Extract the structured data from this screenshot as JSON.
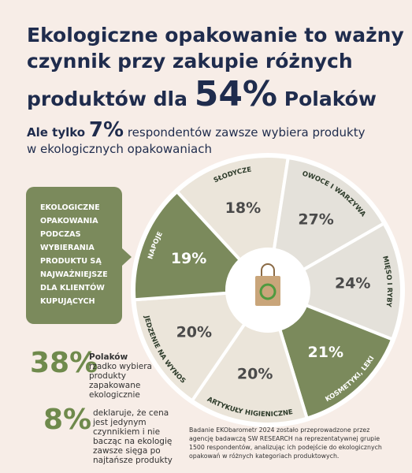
{
  "title": {
    "line1": "Ekologiczne opakowanie to ważny",
    "line2": "czynnik przy zakupie różnych",
    "line3_start": "produktów dla",
    "highlight": "54%",
    "line3_end": "Polaków"
  },
  "subtitle": {
    "start": "Ale tylko",
    "highlight": "7%",
    "line1_end": "respondentów zawsze wybiera produkty",
    "line2": "w ekologicznych opakowaniach"
  },
  "callout": [
    "EKOLOGICZNE",
    "OPAKOWANIA",
    "PODCZAS",
    "WYBIERANIA",
    "PRODUKTU SĄ",
    "NAJWAŻNIEJSZE",
    "DLA KLIENTÓW",
    "KUPUJĄCYCH"
  ],
  "segments": [
    {
      "label": "SŁODYCZE",
      "value": "18%",
      "color": "#ebe5da"
    },
    {
      "label": "OWOCE I WARZYWA",
      "value": "27%",
      "color": "#e4e1da"
    },
    {
      "label": "MIĘSO I RYBY",
      "value": "24%",
      "color": "#e4e1da"
    },
    {
      "label": "KOSMETYKI, LEKI",
      "value": "21%",
      "color": "#7b8a5c"
    },
    {
      "label": "ARTYKUŁY HIGIENICZNE",
      "value": "20%",
      "color": "#ebe5da"
    },
    {
      "label": "JEDZENIE NA WYNOS",
      "value": "20%",
      "color": "#ebe5da"
    },
    {
      "label": "NAPOJE",
      "value": "19%",
      "color": "#7b8a5c"
    }
  ],
  "stats": [
    {
      "value": "38%",
      "lines": [
        "Polaków",
        "rzadko wybiera",
        "produkty",
        "zapakowane",
        "ekologicznie"
      ]
    },
    {
      "value": "8%",
      "lines": [
        "deklaruje, że cena",
        "jest jedynym",
        "czynnikiem i nie",
        "bacząc na ekologię",
        "zawsze sięga po",
        "najtańsze produkty"
      ]
    }
  ],
  "footnote": [
    "Badanie EKObarometr 2024 zostało przeprowadzone przez",
    "agencję badawczą SW RESEARCH na reprezentatywnej grupie",
    "1500 respondentów, analizując ich podejście do ekologicznych",
    "opakowań w różnych kategoriach produktowych."
  ]
}
